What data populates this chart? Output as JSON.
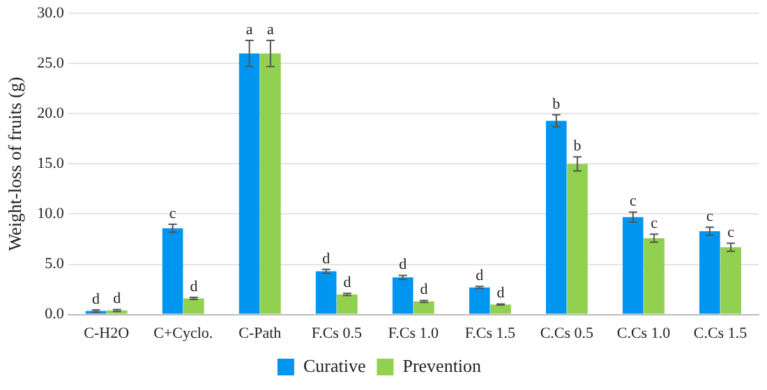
{
  "chart_data": {
    "type": "bar",
    "ylabel": "Weight-loss of fruits (g)",
    "categories": [
      "C-H2O",
      "C+Cyclo.",
      "C-Path",
      "F.Cs 0.5",
      "F.Cs 1.0",
      "F.Cs 1.5",
      "C.Cs 0.5",
      "C.Cs 1.0",
      "C.Cs 1.5"
    ],
    "series": [
      {
        "name": "Curative",
        "color": "#0096f0",
        "values": [
          0.35,
          8.6,
          26.0,
          4.3,
          3.7,
          2.7,
          19.3,
          9.7,
          8.3
        ],
        "errors": [
          0.1,
          0.4,
          1.3,
          0.2,
          0.2,
          0.1,
          0.6,
          0.5,
          0.4
        ],
        "value_labels": [
          "d",
          "c",
          "a",
          "d",
          "d",
          "d",
          "b",
          "c",
          "c"
        ]
      },
      {
        "name": "Prevention",
        "color": "#92d050",
        "values": [
          0.4,
          1.6,
          26.0,
          2.0,
          1.3,
          1.0,
          15.0,
          7.6,
          6.7
        ],
        "errors": [
          0.1,
          0.1,
          1.3,
          0.1,
          0.1,
          0.05,
          0.7,
          0.4,
          0.4
        ],
        "value_labels": [
          "d",
          "d",
          "a",
          "d",
          "d",
          "d",
          "b",
          "c",
          "c"
        ]
      }
    ],
    "ylim": [
      0,
      30
    ],
    "yticks": [
      {
        "value": 0,
        "label": "0.0"
      },
      {
        "value": 5,
        "label": "5.0"
      },
      {
        "value": 10,
        "label": "10.0"
      },
      {
        "value": 15,
        "label": "15.0"
      },
      {
        "value": 20,
        "label": "20.0"
      },
      {
        "value": 25,
        "label": "25.0"
      },
      {
        "value": 30,
        "label": "30.0"
      }
    ],
    "grid": "y",
    "legend": "bottom"
  }
}
